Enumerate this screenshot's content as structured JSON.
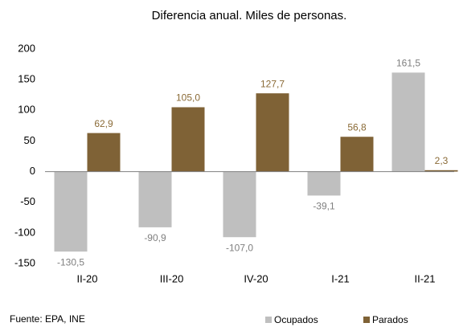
{
  "chart_data": {
    "type": "bar",
    "title": "Diferencia anual. Miles de personas.",
    "categories": [
      "II-20",
      "III-20",
      "IV-20",
      "I-21",
      "II-21"
    ],
    "series": [
      {
        "name": "Ocupados",
        "color": "#bfbfbf",
        "label_color": "#7f7f7f",
        "values": [
          -130.5,
          -90.9,
          -107.0,
          -39.1,
          161.5
        ],
        "value_labels": [
          "-130,5",
          "-90,9",
          "-107,0",
          "-39,1",
          "161,5"
        ]
      },
      {
        "name": "Parados",
        "color": "#7f6236",
        "label_color": "#8a6a36",
        "values": [
          62.9,
          105.0,
          127.7,
          56.8,
          2.3
        ],
        "value_labels": [
          "62,9",
          "105,0",
          "127,7",
          "56,8",
          "2,3"
        ]
      }
    ],
    "ylim": [
      -150,
      200
    ],
    "yticks": [
      -150,
      -100,
      -50,
      0,
      50,
      100,
      150,
      200
    ],
    "grid": false,
    "source": "Fuente: EPA, INE",
    "legend": "bottom-right"
  }
}
